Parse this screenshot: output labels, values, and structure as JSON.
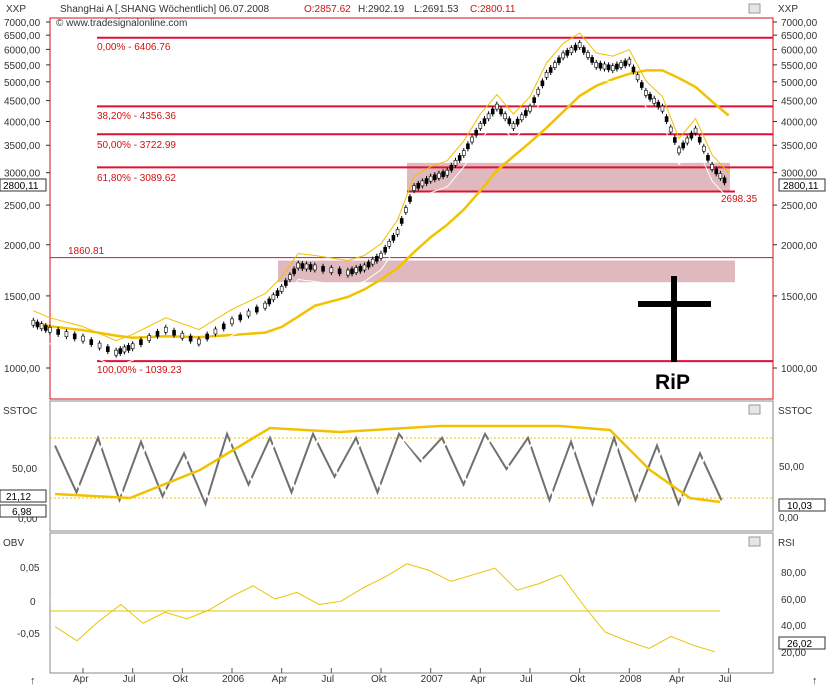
{
  "header": {
    "symbol": "XXP",
    "instrument": "ShangHai A [.SHANG  Wöchentlich] 06.07.2008",
    "ohlc": {
      "open_label": "O:2857.62",
      "high_label": "H:2902.19",
      "low_label": "L:2691.53",
      "close_label": "C:2800.11"
    },
    "copyright": "© www.tradesignalonline.com",
    "right_symbol": "XXP"
  },
  "panels": {
    "price": {
      "y_ticks": [
        "7000,00",
        "6500,00",
        "6000,00",
        "5500,00",
        "5000,00",
        "4500,00",
        "4000,00",
        "3500,00",
        "3000,00",
        "2500,00",
        "2000,00",
        "1500,00",
        "1000,00"
      ],
      "y_values": [
        7000,
        6500,
        6000,
        5500,
        5000,
        4500,
        4000,
        3500,
        3000,
        2500,
        2000,
        1500,
        1000
      ],
      "current_badge": "2800,11",
      "left_current_badge": "2800,11"
    },
    "stoch": {
      "title_left": "SSTOC",
      "title_right": "SSTOC",
      "left_ticks": [
        "50,00",
        "0,00"
      ],
      "left_badges": [
        "21,12",
        "6,98"
      ],
      "right_ticks": [
        "50,00",
        "0,00"
      ],
      "right_badge": "10,03"
    },
    "obv": {
      "title_left": "OBV",
      "title_right": "RSI",
      "left_ticks": [
        "0,05",
        "0",
        "-0,05"
      ],
      "right_ticks": [
        "80,00",
        "60,00",
        "40,00",
        "20,00"
      ],
      "right_badge": "26,02"
    }
  },
  "x_axis": {
    "labels": [
      "Apr",
      "Jul",
      "Okt",
      "2006",
      "Apr",
      "Jul",
      "Okt",
      "2007",
      "Apr",
      "Jul",
      "Okt",
      "2008",
      "Apr",
      "Jul"
    ]
  },
  "annotations": {
    "fib_levels": [
      {
        "label": "0,00% - 6406.76",
        "value": 6406.76
      },
      {
        "label": "38,20% - 4356.36",
        "value": 4356.36
      },
      {
        "label": "50,00% - 3722.99",
        "value": 3722.99
      },
      {
        "label": "61,80% - 3089.62",
        "value": 3089.62
      },
      {
        "label": "100,00% - 1039.23",
        "value": 1039.23
      }
    ],
    "support_label": "1860.81",
    "support_value": 1860.81,
    "low_label": "2698.35",
    "low_value": 2698.35,
    "rip_text": "RiP"
  },
  "colors": {
    "fib_line": "#dd1133",
    "zone": "#c98a93",
    "ma_thick": "#f2c200",
    "ma_thin": "#f0c000",
    "band_white": "#ffffff",
    "candle": "#000000",
    "stoch_grey": "#707070",
    "rsi_yellow": "#e8c400"
  },
  "chart_data": {
    "type": "line",
    "title": "ShangHai A [.SHANG  Wöchentlich] 06.07.2008",
    "xlabel": "",
    "ylabel": "",
    "log_scale": true,
    "ylim": [
      870,
      7300
    ],
    "series": [
      {
        "x": [
          "2005-01",
          "2005-02",
          "2005-04",
          "2005-06",
          "2005-07",
          "2005-09",
          "2005-11",
          "2006-01",
          "2006-03",
          "2006-04",
          "2006-05",
          "2006-06",
          "2006-08",
          "2006-09",
          "2006-10",
          "2006-11",
          "2006-12",
          "2007-01",
          "2007-02",
          "2007-03",
          "2007-04",
          "2007-05",
          "2007-06",
          "2007-07",
          "2007-08",
          "2007-09",
          "2007-10",
          "2007-11",
          "2007-12",
          "2008-01",
          "2008-02",
          "2008-03",
          "2008-04",
          "2008-05",
          "2008-06",
          "2008-07"
        ],
        "values": [
          1290,
          1240,
          1180,
          1090,
          1130,
          1240,
          1160,
          1300,
          1420,
          1560,
          1780,
          1760,
          1710,
          1760,
          1880,
          2150,
          2750,
          2900,
          3000,
          3350,
          3900,
          4350,
          3900,
          4300,
          5200,
          5800,
          6150,
          5500,
          5400,
          5600,
          4700,
          4300,
          3400,
          3800,
          3100,
          2800
        ]
      }
    ],
    "indicators": [
      "SSTOC",
      "OBV",
      "RSI"
    ],
    "stoch_last": [
      21.12,
      6.98,
      10.03
    ],
    "rsi_last": 26.02,
    "grid": false
  }
}
